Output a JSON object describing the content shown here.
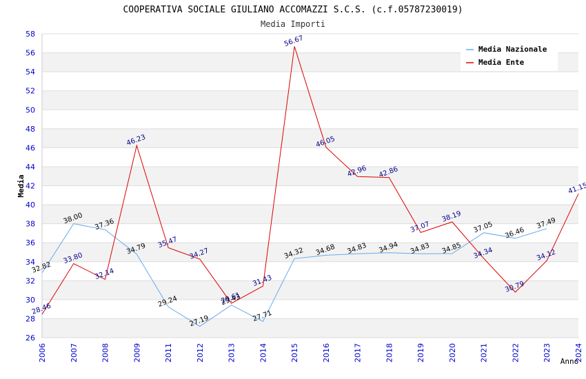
{
  "chart_data": {
    "type": "line",
    "title": "COOPERATIVA SOCIALE GIULIANO ACCOMAZZI S.C.S. (c.f.05787230019)",
    "subtitle": "Media Importi",
    "xlabel": "Anno",
    "ylabel": "Media",
    "ylim": [
      26,
      58
    ],
    "ytick_step": 2,
    "grid": true,
    "legend_position": "top-right",
    "categories": [
      "2006",
      "2007",
      "2008",
      "2009",
      "2011",
      "2012",
      "2013",
      "2014",
      "2015",
      "2016",
      "2017",
      "2018",
      "2019",
      "2020",
      "2021",
      "2022",
      "2023",
      "2024"
    ],
    "series": [
      {
        "name": "Media Nazionale",
        "color": "#66aaee",
        "label_color": "#000000",
        "values": [
          32.82,
          38.0,
          37.36,
          34.79,
          29.24,
          27.19,
          29.43,
          27.71,
          34.32,
          34.68,
          34.83,
          34.94,
          34.83,
          34.85,
          37.05,
          36.46,
          37.49,
          null
        ],
        "labels": [
          "32.82",
          "38.00",
          "37.36",
          "34.79",
          "29.24",
          "27.19",
          "29.43",
          "27.71",
          "34.32",
          "34.68",
          "34.83",
          "34.94",
          "34.83",
          "34.85",
          "37.05",
          "36.46",
          "37.49",
          null
        ]
      },
      {
        "name": "Media Ente",
        "color": "#dd0000",
        "label_color": "#000088",
        "values": [
          28.46,
          33.8,
          32.14,
          46.23,
          35.47,
          34.27,
          29.61,
          31.43,
          56.67,
          46.05,
          42.96,
          42.86,
          37.07,
          38.19,
          34.34,
          30.79,
          34.12,
          41.15
        ],
        "labels": [
          "28.46",
          "33.80",
          "32.14",
          "46.23",
          "35.47",
          "34.27",
          "29.61",
          "31.43",
          "56.67",
          "46.05",
          "42.96",
          "42.86",
          "37.07",
          "38.19",
          "34.34",
          "30.79",
          "34.12",
          "41.15"
        ]
      }
    ]
  }
}
